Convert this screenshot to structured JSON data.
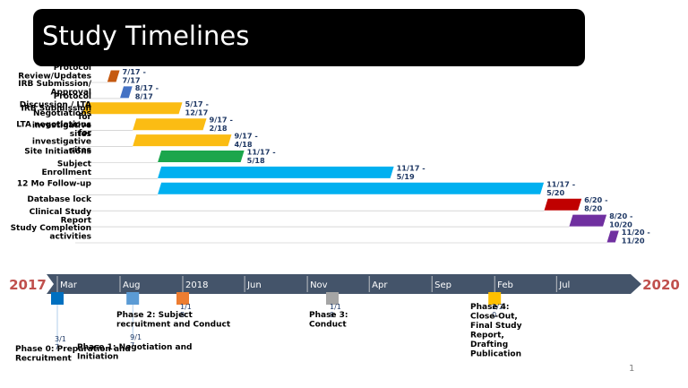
{
  "title": "Study Timelines",
  "page_number": "1",
  "colors": {
    "axis_band": "#44546a",
    "year_label": "#c0504d",
    "date_label": "#1f3864",
    "task_label": "#000000",
    "gridline": "#bfbfbf"
  },
  "chart_data": {
    "type": "gantt",
    "tasks": [
      {
        "label": "Protocol Review/Updates",
        "range": "7/17 - 7/17",
        "start": "2017-07-01",
        "end": "2017-07-31",
        "color": "#c55a11"
      },
      {
        "label": "IRB Submission/ Approval",
        "range": "8/17 - 8/17",
        "start": "2017-08-01",
        "end": "2017-08-31",
        "color": "#4472c4"
      },
      {
        "label": "Protocol Discussion / LTA Negotiations",
        "range": "5/17 - 12/17",
        "start": "2017-05-01",
        "end": "2017-12-31",
        "color": "#fbbc13"
      },
      {
        "label": "IRB Submission for investigative sites",
        "range": "9/17 - 2/18",
        "start": "2017-09-01",
        "end": "2018-02-28",
        "color": "#fbbc13"
      },
      {
        "label": "LTA negotiations for investigative sites",
        "range": "9/17 - 4/18",
        "start": "2017-09-01",
        "end": "2018-04-30",
        "color": "#fbbc13"
      },
      {
        "label": "Site Initiations",
        "range": "11/17 - 5/18",
        "start": "2017-11-01",
        "end": "2018-05-31",
        "color": "#1ca64c"
      },
      {
        "label": "Subject Enrollment",
        "range": "11/17 - 5/19",
        "start": "2017-11-01",
        "end": "2019-05-31",
        "color": "#00b0f0"
      },
      {
        "label": "12 Mo Follow-up",
        "range": "11/17 - 5/20",
        "start": "2017-11-01",
        "end": "2020-05-31",
        "color": "#00b0f0"
      },
      {
        "label": "Database lock",
        "range": "6/20 - 8/20",
        "start": "2020-06-01",
        "end": "2020-08-31",
        "color": "#c00000"
      },
      {
        "label": "Clinical Study Report",
        "range": "8/20 - 10/20",
        "start": "2020-08-01",
        "end": "2020-10-31",
        "color": "#7030a0"
      },
      {
        "label": "Study Completion activities",
        "range": "11/20 - 11/20",
        "start": "2020-11-01",
        "end": "2020-11-30",
        "color": "#7030a0"
      }
    ],
    "axis": {
      "start_year_label": "2017",
      "end_year_label": "2020",
      "ticks": [
        {
          "label": "Mar",
          "date": "2017-03-01"
        },
        {
          "label": "Aug",
          "date": "2017-08-01"
        },
        {
          "label": "2018",
          "date": "2018-01-01"
        },
        {
          "label": "Jun",
          "date": "2018-06-01"
        },
        {
          "label": "Nov",
          "date": "2018-11-01"
        },
        {
          "label": "Apr",
          "date": "2019-04-01"
        },
        {
          "label": "Sep",
          "date": "2019-09-01"
        },
        {
          "label": "Feb",
          "date": "2020-02-01"
        },
        {
          "label": "Jul",
          "date": "2020-07-01"
        }
      ]
    },
    "milestones": [
      {
        "label": "Phase 0: Preparation and Recruitment",
        "date_label": "3/17",
        "date": "2017-03-01",
        "color": "#0070c0",
        "side": "below"
      },
      {
        "label": "Phase 1: Negotiation and Initiation",
        "date_label": "9/17",
        "date": "2017-09-01",
        "color": "#5b9bd5",
        "side": "below"
      },
      {
        "label": "Phase 2: Subject recruitment and Conduct",
        "date_label": "1/18",
        "date": "2018-01-01",
        "color": "#ed7d31",
        "side": "above"
      },
      {
        "label": "Phase 3: Conduct",
        "date_label": "1/19",
        "date": "2019-01-01",
        "color": "#a5a5a5",
        "side": "above"
      },
      {
        "label": "Phase 4: Close-Out, Final Study Report, Drafting Publication",
        "date_label": "2/20",
        "date": "2020-02-01",
        "color": "#ffc000",
        "side": "above"
      }
    ]
  }
}
